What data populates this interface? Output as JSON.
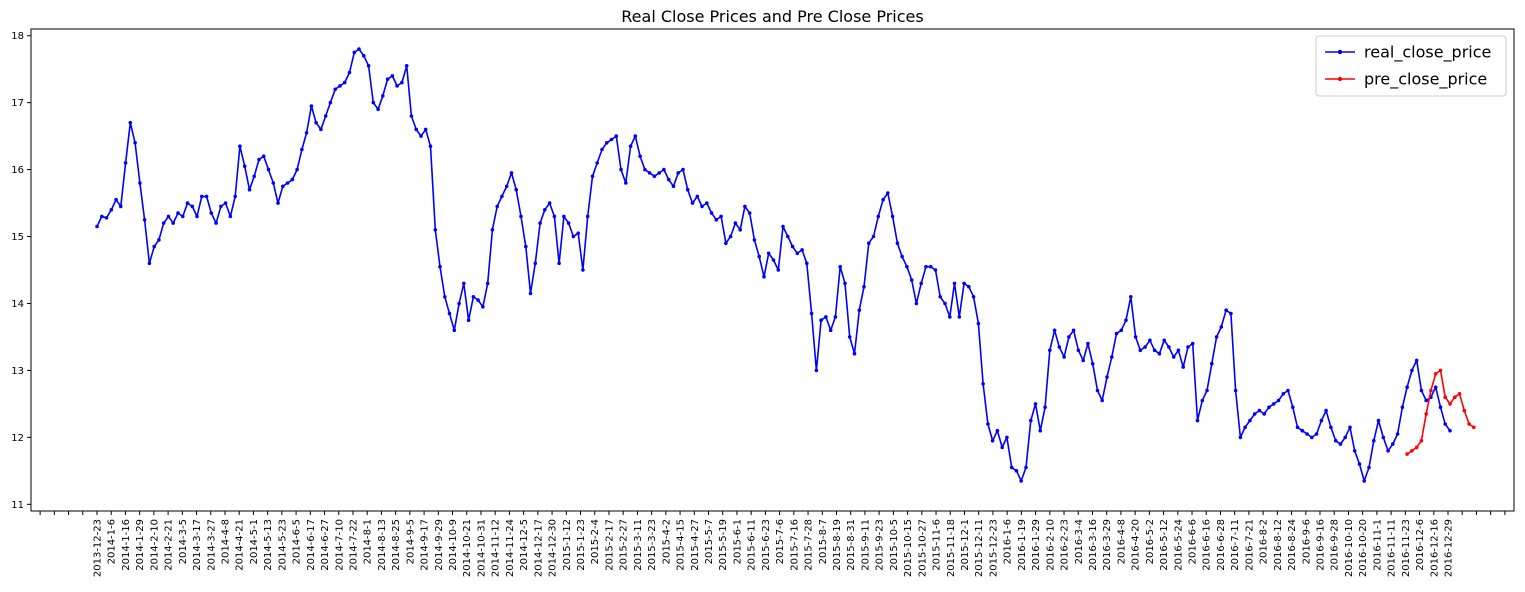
{
  "chart_data": {
    "type": "line",
    "title": "Real Close Prices and Pre Close Prices",
    "xlabel": "",
    "ylabel": "",
    "ylim": [
      10.9,
      18.1
    ],
    "y_ticks": [
      11,
      12,
      13,
      14,
      15,
      16,
      17,
      18
    ],
    "grid": false,
    "legend_position": "top-right",
    "x_tick_labels": [
      "2013-12-23",
      "2014-1-6",
      "2014-1-16",
      "2014-1-29",
      "2014-2-10",
      "2014-2-21",
      "2014-3-5",
      "2014-3-17",
      "2014-3-27",
      "2014-4-8",
      "2014-4-21",
      "2014-5-1",
      "2014-5-13",
      "2014-5-23",
      "2014-6-5",
      "2014-6-17",
      "2014-6-27",
      "2014-7-10",
      "2014-7-22",
      "2014-8-1",
      "2014-8-13",
      "2014-8-25",
      "2014-9-5",
      "2014-9-17",
      "2014-9-29",
      "2014-10-9",
      "2014-10-21",
      "2014-10-31",
      "2014-11-12",
      "2014-11-24",
      "2014-12-5",
      "2014-12-17",
      "2014-12-30",
      "2015-1-12",
      "2015-1-23",
      "2015-2-4",
      "2015-2-17",
      "2015-2-27",
      "2015-3-11",
      "2015-3-23",
      "2015-4-2",
      "2015-4-15",
      "2015-4-27",
      "2015-5-7",
      "2015-5-19",
      "2015-6-1",
      "2015-6-11",
      "2015-6-23",
      "2015-7-6",
      "2015-7-16",
      "2015-7-28",
      "2015-8-7",
      "2015-8-19",
      "2015-8-31",
      "2015-9-11",
      "2015-9-23",
      "2015-10-5",
      "2015-10-15",
      "2015-10-27",
      "2015-11-6",
      "2015-11-18",
      "2015-12-1",
      "2015-12-11",
      "2015-12-23",
      "2016-1-6",
      "2016-1-19",
      "2016-1-29",
      "2016-2-10",
      "2016-2-23",
      "2016-3-4",
      "2016-3-16",
      "2016-3-29",
      "2016-4-8",
      "2016-4-20",
      "2016-5-2",
      "2016-5-12",
      "2016-5-24",
      "2016-6-6",
      "2016-6-16",
      "2016-6-28",
      "2016-7-11",
      "2016-7-21",
      "2016-8-2",
      "2016-8-12",
      "2016-8-24",
      "2016-9-6",
      "2016-9-16",
      "2016-9-28",
      "2016-10-10",
      "2016-10-20",
      "2016-11-1",
      "2016-11-11",
      "2016-11-23",
      "2016-12-6",
      "2016-12-16",
      "2016-12-29"
    ],
    "series": [
      {
        "name": "real_close_price",
        "color": "#0000ff",
        "start_index": 0,
        "values": [
          15.15,
          15.3,
          15.28,
          15.4,
          15.55,
          15.45,
          16.1,
          16.7,
          16.4,
          15.8,
          15.25,
          14.6,
          14.85,
          14.95,
          15.2,
          15.3,
          15.2,
          15.35,
          15.3,
          15.5,
          15.45,
          15.3,
          15.6,
          15.6,
          15.35,
          15.2,
          15.45,
          15.5,
          15.3,
          15.6,
          16.35,
          16.05,
          15.7,
          15.9,
          16.15,
          16.2,
          16.0,
          15.8,
          15.5,
          15.75,
          15.8,
          15.85,
          16.0,
          16.3,
          16.55,
          16.95,
          16.7,
          16.6,
          16.8,
          17.0,
          17.2,
          17.25,
          17.3,
          17.45,
          17.75,
          17.8,
          17.7,
          17.55,
          17.0,
          16.9,
          17.1,
          17.35,
          17.4,
          17.25,
          17.3,
          17.55,
          16.8,
          16.6,
          16.5,
          16.6,
          16.35,
          15.1,
          14.55,
          14.1,
          13.85,
          13.6,
          14.0,
          14.3,
          13.75,
          14.1,
          14.05,
          13.95,
          14.3,
          15.1,
          15.45,
          15.6,
          15.75,
          15.95,
          15.7,
          15.3,
          14.85,
          14.15,
          14.6,
          15.2,
          15.4,
          15.5,
          15.3,
          14.6,
          15.3,
          15.2,
          15.0,
          15.05,
          14.5,
          15.3,
          15.9,
          16.1,
          16.3,
          16.4,
          16.45,
          16.5,
          16.0,
          15.8,
          16.35,
          16.5,
          16.2,
          16.0,
          15.95,
          15.9,
          15.95,
          16.0,
          15.85,
          15.75,
          15.95,
          16.0,
          15.7,
          15.5,
          15.6,
          15.45,
          15.5,
          15.35,
          15.25,
          15.3,
          14.9,
          15.0,
          15.2,
          15.1,
          15.45,
          15.35,
          14.95,
          14.7,
          14.4,
          14.75,
          14.65,
          14.5,
          15.15,
          15.0,
          14.85,
          14.75,
          14.8,
          14.6,
          13.85,
          13.0,
          13.75,
          13.8,
          13.6,
          13.8,
          14.55,
          14.3,
          13.5,
          13.25,
          13.9,
          14.25,
          14.9,
          15.0,
          15.3,
          15.55,
          15.65,
          15.3,
          14.9,
          14.7,
          14.55,
          14.35,
          14.0,
          14.3,
          14.55,
          14.55,
          14.5,
          14.1,
          14.0,
          13.8,
          14.3,
          13.8,
          14.3,
          14.25,
          14.1,
          13.7,
          12.8,
          12.2,
          11.95,
          12.1,
          11.85,
          12.0,
          11.55,
          11.5,
          11.35,
          11.55,
          12.25,
          12.5,
          12.1,
          12.45,
          13.3,
          13.6,
          13.35,
          13.2,
          13.5,
          13.6,
          13.3,
          13.15,
          13.4,
          13.1,
          12.7,
          12.55,
          12.9,
          13.2,
          13.55,
          13.6,
          13.75,
          14.1,
          13.5,
          13.3,
          13.35,
          13.45,
          13.3,
          13.25,
          13.45,
          13.35,
          13.2,
          13.3,
          13.05,
          13.35,
          13.4,
          12.25,
          12.55,
          12.7,
          13.1,
          13.5,
          13.65,
          13.9,
          13.85,
          12.7,
          12.0,
          12.15,
          12.25,
          12.35,
          12.4,
          12.35,
          12.45,
          12.5,
          12.55,
          12.65,
          12.7,
          12.45,
          12.15,
          12.1,
          12.05,
          12.0,
          12.05,
          12.25,
          12.4,
          12.15,
          11.95,
          11.9,
          12.0,
          12.15,
          11.8,
          11.6,
          11.35,
          11.55,
          11.95,
          12.25,
          12.0,
          11.8,
          11.9,
          12.05,
          12.45,
          12.75,
          13.0,
          13.15,
          12.7,
          12.55,
          12.6,
          12.75,
          12.45,
          12.2,
          12.1
        ]
      },
      {
        "name": "pre_close_price",
        "color": "#ff0000",
        "start_index": 275,
        "values": [
          11.75,
          11.8,
          11.85,
          11.95,
          12.35,
          12.7,
          12.95,
          13.0,
          12.6,
          12.5,
          12.6,
          12.65,
          12.4,
          12.2,
          12.15
        ]
      }
    ]
  }
}
